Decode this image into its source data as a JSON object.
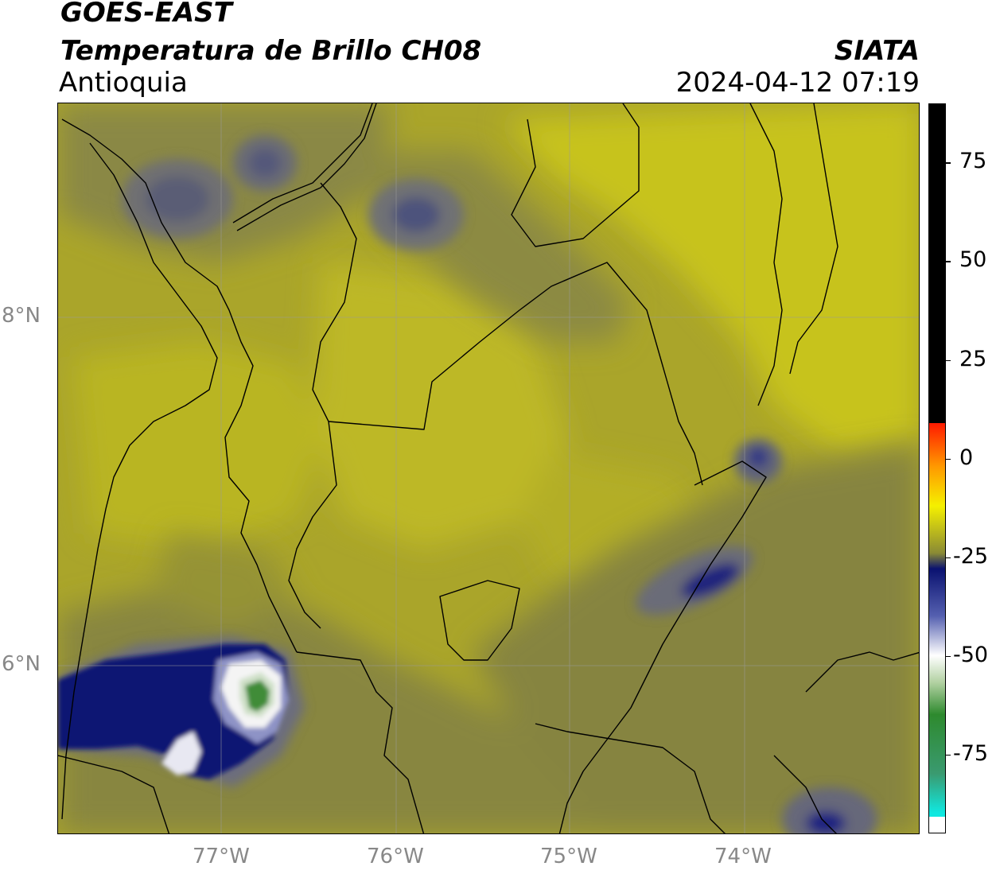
{
  "header": {
    "satellite": "GOES-EAST",
    "product": "Temperatura de Brillo CH08",
    "region": "Antioquia",
    "agency": "SIATA",
    "datetime": "2024-04-12 07:19"
  },
  "map": {
    "lon_labels": [
      "77°W",
      "76°W",
      "75°W",
      "74°W"
    ],
    "lat_labels": [
      "8°N",
      "6°N"
    ],
    "extent": {
      "lon": [
        -77.93,
        -73.0
      ],
      "lat": [
        4.95,
        9.15
      ]
    }
  },
  "colorbar": {
    "ticks": [
      "75",
      "50",
      "25",
      "0",
      "-25",
      "-50",
      "-75"
    ],
    "tick_values": [
      75,
      50,
      25,
      0,
      -25,
      -50,
      -75
    ],
    "range": [
      -95,
      90
    ],
    "colors": {
      "black": "#000000",
      "red": "#ff1a00",
      "orange": "#ff9900",
      "yellow": "#f5f000",
      "olive": "#8a8a35",
      "navy": "#0a1270",
      "white": "#ffffff",
      "green": "#2e8a2e",
      "cyan": "#10e8e0"
    }
  }
}
